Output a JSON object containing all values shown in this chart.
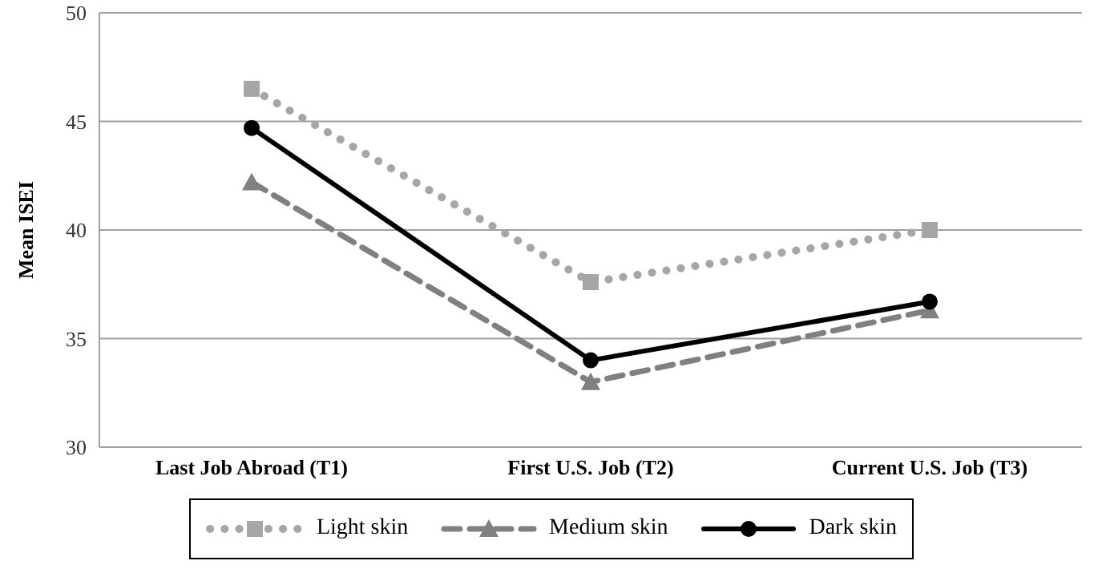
{
  "chart_data": {
    "type": "line",
    "ylabel": "Mean ISEI",
    "categories": [
      "Last Job Abroad (T1)",
      "First U.S. Job (T2)",
      "Current U.S. Job (T3)"
    ],
    "series": [
      {
        "name": "Light skin",
        "color": "#a6a6a6",
        "values": [
          46.5,
          37.6,
          40.0
        ],
        "marker": "square",
        "line_style": "dotted"
      },
      {
        "name": "Medium skin",
        "color": "#808080",
        "values": [
          42.2,
          33.0,
          36.3
        ],
        "marker": "triangle",
        "line_style": "dashed"
      },
      {
        "name": "Dark skin",
        "color": "#000000",
        "values": [
          44.7,
          34.0,
          36.7
        ],
        "marker": "circle",
        "line_style": "solid"
      }
    ],
    "ylim": [
      30,
      50
    ],
    "yticks": [
      30,
      35,
      40,
      45,
      50
    ],
    "grid": "y",
    "legend": "bottom"
  }
}
